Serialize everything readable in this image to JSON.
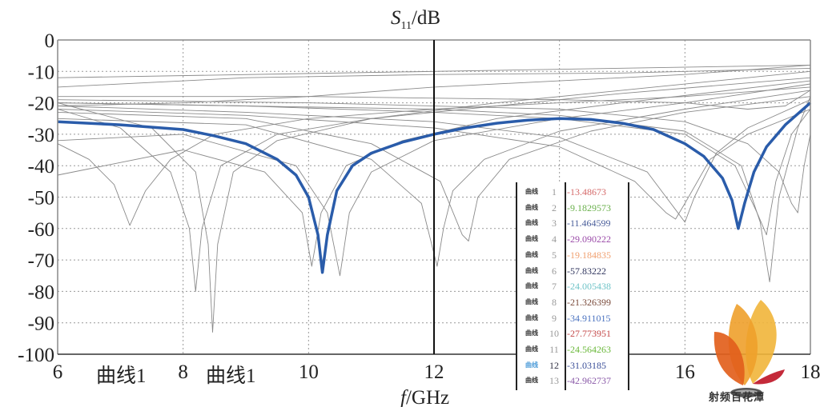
{
  "chart_data": {
    "type": "line",
    "title": "",
    "ylabel": "S11/dB",
    "ylabel_main": "S",
    "ylabel_sub": "11",
    "ylabel_unit": "/dB",
    "xlabel": "f/GHz",
    "xlabel_var": "f",
    "xlabel_unit": "/GHz",
    "xlim": [
      6,
      18
    ],
    "ylim": [
      -100,
      0
    ],
    "xticks": [
      "6",
      "8",
      "10",
      "12",
      "16",
      "18"
    ],
    "xtick_values": [
      6,
      8,
      10,
      12,
      16,
      18
    ],
    "yticks": [
      "0",
      "-10",
      "-20",
      "-30",
      "-40",
      "-50",
      "-60",
      "-70",
      "-80",
      "-90",
      "-100"
    ],
    "ytick_values": [
      0,
      -10,
      -20,
      -30,
      -40,
      -50,
      -60,
      -70,
      -80,
      -90,
      -100
    ],
    "grid": true,
    "grid_x": [
      8,
      10,
      14,
      16
    ],
    "grid_y": [
      -10,
      -20,
      -30,
      -40,
      -50,
      -60,
      -70,
      -80,
      -90
    ],
    "marker_x": 12,
    "axis_annotations": [
      "曲线1",
      "曲线1"
    ],
    "highlight_color": "#2a5caa",
    "background_color": "#8a8a8a",
    "highlight_series": {
      "x": [
        6,
        7,
        8,
        8.5,
        9,
        9.5,
        9.8,
        10.0,
        10.15,
        10.22,
        10.3,
        10.45,
        10.7,
        11,
        11.5,
        12,
        12.5,
        13,
        13.5,
        14,
        14.5,
        15,
        15.5,
        16,
        16.3,
        16.6,
        16.75,
        16.85,
        16.95,
        17.1,
        17.3,
        17.6,
        18
      ],
      "y": [
        -26,
        -27,
        -28.5,
        -30.5,
        -33,
        -38,
        -43,
        -50,
        -62,
        -74,
        -62,
        -48,
        -40,
        -36,
        -32.5,
        -30,
        -28,
        -26.5,
        -25.5,
        -25,
        -25.3,
        -26.5,
        -28.5,
        -33,
        -37,
        -44,
        -51,
        -60,
        -52,
        -42,
        -34,
        -27,
        -20
      ]
    },
    "background_series": [
      {
        "x": [
          6,
          18
        ],
        "y": [
          -12,
          -8
        ]
      },
      {
        "x": [
          6,
          9,
          12,
          15,
          18
        ],
        "y": [
          -15,
          -12,
          -11,
          -10.5,
          -9
        ]
      },
      {
        "x": [
          6,
          8,
          10,
          12,
          14,
          16,
          18
        ],
        "y": [
          -21,
          -20,
          -18,
          -15,
          -13,
          -11,
          -8
        ]
      },
      {
        "x": [
          6,
          6.5,
          6.9,
          7.15,
          7.4,
          7.8,
          8.5,
          10,
          12,
          14,
          16,
          18
        ],
        "y": [
          -33,
          -38,
          -46,
          -59,
          -48,
          -38,
          -30,
          -25,
          -22,
          -20,
          -18,
          -15
        ]
      },
      {
        "x": [
          6,
          7,
          7.8,
          8.1,
          8.2,
          8.3,
          8.6,
          9.5,
          11,
          13,
          15,
          18
        ],
        "y": [
          -22,
          -28,
          -42,
          -60,
          -80,
          -60,
          -40,
          -30,
          -25,
          -21,
          -17,
          -12
        ]
      },
      {
        "x": [
          6,
          7.5,
          8.2,
          8.4,
          8.47,
          8.55,
          8.8,
          9.5,
          11,
          13,
          15,
          18
        ],
        "y": [
          -20,
          -28,
          -42,
          -65,
          -93,
          -65,
          -42,
          -32,
          -25,
          -20,
          -16,
          -10
        ]
      },
      {
        "x": [
          6,
          8,
          9.3,
          9.9,
          10.05,
          10.2,
          10.6,
          11.5,
          13,
          15,
          18
        ],
        "y": [
          -43,
          -35,
          -42,
          -55,
          -72,
          -55,
          -40,
          -32,
          -25,
          -20,
          -13
        ]
      },
      {
        "x": [
          6,
          8,
          9.8,
          10.3,
          10.5,
          10.65,
          11,
          12,
          14,
          16,
          18
        ],
        "y": [
          -32,
          -30,
          -40,
          -55,
          -75,
          -55,
          -42,
          -32,
          -25,
          -20,
          -14
        ]
      },
      {
        "x": [
          6,
          9,
          11,
          11.8,
          12.05,
          12.15,
          12.3,
          12.8,
          14,
          16,
          18
        ],
        "y": [
          -25,
          -27,
          -38,
          -52,
          -72,
          -60,
          -48,
          -38,
          -29,
          -22,
          -16
        ]
      },
      {
        "x": [
          6,
          9,
          11,
          12.1,
          12.45,
          12.55,
          12.7,
          13.2,
          14.5,
          16,
          18
        ],
        "y": [
          -23,
          -25,
          -33,
          -45,
          -62,
          -64,
          -50,
          -38,
          -29,
          -23,
          -18
        ]
      },
      {
        "x": [
          6,
          9,
          12,
          14,
          15.2,
          15.7,
          15.85,
          16.0,
          16.4,
          17,
          18
        ],
        "y": [
          -22,
          -24,
          -28,
          -34,
          -45,
          -55,
          -57,
          -52,
          -38,
          -30,
          -22
        ]
      },
      {
        "x": [
          6,
          9,
          12,
          14,
          15.4,
          15.85,
          16.0,
          16.15,
          16.5,
          17,
          18
        ],
        "y": [
          -21,
          -23,
          -26,
          -31,
          -42,
          -54,
          -58,
          -50,
          -36,
          -28,
          -19
        ]
      },
      {
        "x": [
          6,
          9,
          12,
          14,
          16,
          16.8,
          17.15,
          17.3,
          17.45,
          17.7,
          18
        ],
        "y": [
          -20,
          -21,
          -23,
          -25,
          -30,
          -40,
          -55,
          -62,
          -45,
          -30,
          -22
        ]
      },
      {
        "x": [
          6,
          9,
          12,
          14,
          16,
          16.9,
          17.2,
          17.35,
          17.5,
          17.8,
          18
        ],
        "y": [
          -20,
          -21,
          -22,
          -24,
          -29,
          -40,
          -58,
          -77,
          -50,
          -28,
          -18
        ]
      },
      {
        "x": [
          6,
          10,
          14,
          16,
          17,
          17.5,
          17.7,
          17.8,
          17.9,
          18
        ],
        "y": [
          -19,
          -20,
          -22,
          -26,
          -33,
          -42,
          -52,
          -55,
          -40,
          -30
        ]
      },
      {
        "x": [
          6,
          10,
          14,
          16,
          17,
          17.6,
          18
        ],
        "y": [
          -18,
          -18,
          -19,
          -20,
          -22,
          -21,
          -16
        ]
      }
    ],
    "marker_table": {
      "label": "曲线",
      "rows": [
        {
          "index": "1",
          "value": "-13.48673",
          "color": "#d56a6a"
        },
        {
          "index": "2",
          "value": "-9.1829573",
          "color": "#6ab04c"
        },
        {
          "index": "3",
          "value": "-11.464599",
          "color": "#4a5e9a"
        },
        {
          "index": "4",
          "value": "-29.090222",
          "color": "#9a4aa8"
        },
        {
          "index": "5",
          "value": "-19.184835",
          "color": "#f0a070"
        },
        {
          "index": "6",
          "value": "-57.83222",
          "color": "#30365e"
        },
        {
          "index": "7",
          "value": "-24.005438",
          "color": "#70c4c8"
        },
        {
          "index": "8",
          "value": "-21.326399",
          "color": "#7a4a3a"
        },
        {
          "index": "9",
          "value": "-34.911015",
          "color": "#4a72c0"
        },
        {
          "index": "10",
          "value": "-27.773951",
          "color": "#c44848"
        },
        {
          "index": "11",
          "value": "-24.564263",
          "color": "#6ab83a"
        },
        {
          "index": "12",
          "value": "-31.03185",
          "color": "#3a4e98"
        },
        {
          "index": "13",
          "value": "-42.962737",
          "color": "#8a5aa8"
        }
      ],
      "highlight_label_color": "#4a9ad8"
    }
  },
  "watermark": {
    "text": "射频百花潭"
  }
}
